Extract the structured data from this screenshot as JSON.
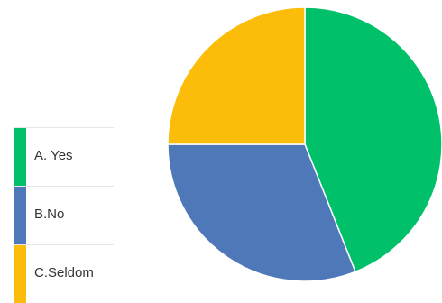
{
  "chart_data": {
    "type": "pie",
    "title": "",
    "legend_position": "left",
    "slices": [
      {
        "label": "A. Yes",
        "value": 44,
        "color": "#00c06a"
      },
      {
        "label": "B.No",
        "value": 31,
        "color": "#4f78b8"
      },
      {
        "label": "C.Seldom",
        "value": 25,
        "color": "#fbbd09"
      }
    ]
  }
}
